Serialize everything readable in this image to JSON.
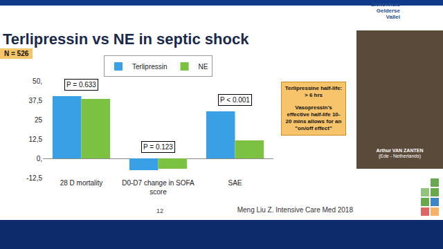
{
  "chart_data": {
    "type": "bar",
    "title": "Terlipressin vs NE in septic shock",
    "categories": [
      "28 D mortality",
      "D0-D7 change in SOFA score",
      "SAE"
    ],
    "series": [
      {
        "name": "Terlipressin",
        "color": "#3aa0e6",
        "values": [
          40.2,
          -7.6,
          30.4
        ]
      },
      {
        "name": "NE",
        "color": "#7cc242",
        "values": [
          38.4,
          -6.7,
          11.6
        ]
      }
    ],
    "ylim": [
      -12.5,
      50
    ],
    "yticks": [
      {
        "value": -12.5,
        "label": "-12,5"
      },
      {
        "value": 0,
        "label": "0,"
      },
      {
        "value": 12.5,
        "label": "12,5"
      },
      25,
      {
        "value": 37.5,
        "label": "37,5"
      },
      {
        "value": 50,
        "label": "50,"
      }
    ],
    "grid": false,
    "legend": "top",
    "annotations": [
      {
        "text": "P = 0.633",
        "category": "28 D mortality"
      },
      {
        "text": "P = 0.123",
        "category": "D0-D7 change in SOFA score"
      },
      {
        "text": "P < 0.001",
        "category": "SAE"
      }
    ]
  },
  "slide": {
    "sample": "N = 526",
    "note": [
      "Terlipressine half-life: > 6 hrs",
      "Vasopressin's effective half-life  10-20 mins allows for an \"on/off effect\""
    ],
    "source": "Meng Liu Z. Intensive Care Med 2018",
    "page": "12",
    "logo": [
      "Ziekenhuis",
      "Gelderse",
      "Vallei"
    ],
    "speaker": {
      "name": "Arthur VAN ZANTEN",
      "place": "(Ede - Netherlands)"
    }
  }
}
